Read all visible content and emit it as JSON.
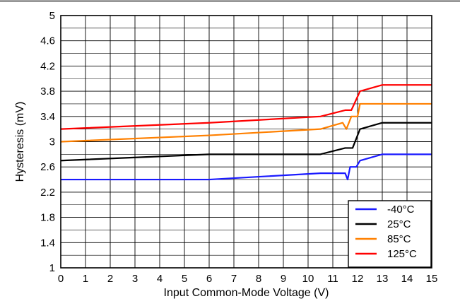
{
  "chart_data": {
    "type": "line",
    "xlabel": "Input Common-Mode Voltage (V)",
    "ylabel": "Hysteresis (mV)",
    "xlim": [
      0,
      15
    ],
    "ylim": [
      1,
      5
    ],
    "xticks": [
      0,
      1,
      2,
      3,
      4,
      5,
      6,
      7,
      8,
      9,
      10,
      11,
      12,
      13,
      14,
      15
    ],
    "yticks": [
      1,
      1.4,
      1.8,
      2.2,
      2.6,
      3,
      3.4,
      3.8,
      4.2,
      4.6,
      5
    ],
    "grid": true,
    "legend_position": "bottom-right",
    "series": [
      {
        "name": "-40°C",
        "color": "#1a1aff",
        "points": [
          [
            0,
            2.4
          ],
          [
            6,
            2.4
          ],
          [
            10.5,
            2.5
          ],
          [
            11.5,
            2.5
          ],
          [
            11.6,
            2.4
          ],
          [
            11.7,
            2.6
          ],
          [
            11.95,
            2.6
          ],
          [
            12.1,
            2.7
          ],
          [
            13,
            2.8
          ],
          [
            15,
            2.8
          ]
        ]
      },
      {
        "name": "25°C",
        "color": "#000000",
        "points": [
          [
            0,
            2.7
          ],
          [
            6,
            2.8
          ],
          [
            10.5,
            2.8
          ],
          [
            11.5,
            2.9
          ],
          [
            11.8,
            2.9
          ],
          [
            12.1,
            3.2
          ],
          [
            13,
            3.3
          ],
          [
            15,
            3.3
          ]
        ]
      },
      {
        "name": "85°C",
        "color": "#ff8000",
        "points": [
          [
            0,
            3.0
          ],
          [
            6,
            3.1
          ],
          [
            10.5,
            3.2
          ],
          [
            11.4,
            3.3
          ],
          [
            11.55,
            3.2
          ],
          [
            11.75,
            3.4
          ],
          [
            12.0,
            3.4
          ],
          [
            12.1,
            3.6
          ],
          [
            15,
            3.6
          ]
        ]
      },
      {
        "name": "125°C",
        "color": "#ff0000",
        "points": [
          [
            0,
            3.2
          ],
          [
            6,
            3.3
          ],
          [
            10.5,
            3.4
          ],
          [
            11.5,
            3.5
          ],
          [
            11.75,
            3.5
          ],
          [
            12.1,
            3.8
          ],
          [
            13,
            3.9
          ],
          [
            15,
            3.9
          ]
        ]
      }
    ]
  }
}
